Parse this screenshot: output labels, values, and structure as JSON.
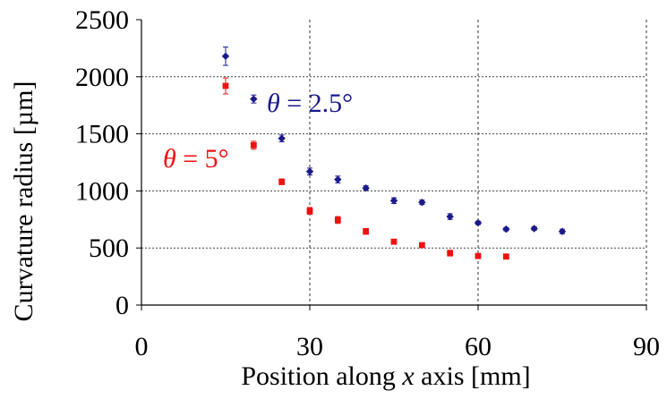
{
  "chart_data": {
    "type": "scatter",
    "title": "",
    "xlabel_prefix": "Position along ",
    "xlabel_var": "x",
    "xlabel_suffix": " axis [mm]",
    "ylabel": "Curvature radius [µm]",
    "xlim": [
      0,
      90
    ],
    "ylim": [
      0,
      2500
    ],
    "xticks": [
      0,
      30,
      60,
      90
    ],
    "yticks": [
      0,
      500,
      1000,
      1500,
      2000,
      2500
    ],
    "grid": "dashed vertical at 30 and 60; dotted horizontal at 500, 1000, 1500, 2000",
    "series": [
      {
        "key": "theta25",
        "name_var": "θ",
        "name_value": " = 2.5°",
        "color": "#1a1a8c",
        "marker": "diamond",
        "x": [
          15,
          20,
          25,
          30,
          35,
          40,
          45,
          50,
          55,
          60,
          65,
          70,
          75
        ],
        "y": [
          2180,
          1805,
          1460,
          1170,
          1100,
          1025,
          915,
          900,
          775,
          720,
          665,
          670,
          645
        ],
        "err": [
          80,
          35,
          30,
          30,
          30,
          20,
          25,
          20,
          25,
          15,
          15,
          15,
          20
        ]
      },
      {
        "key": "theta5",
        "name_var": "θ",
        "name_value": " = 5°",
        "color": "#ee1111",
        "marker": "square",
        "x": [
          15,
          20,
          25,
          30,
          35,
          40,
          45,
          50,
          55,
          60,
          65
        ],
        "y": [
          1920,
          1400,
          1080,
          825,
          745,
          645,
          555,
          525,
          455,
          430,
          425
        ],
        "err": [
          70,
          35,
          25,
          30,
          30,
          25,
          20,
          15,
          25,
          15,
          15
        ]
      }
    ]
  }
}
